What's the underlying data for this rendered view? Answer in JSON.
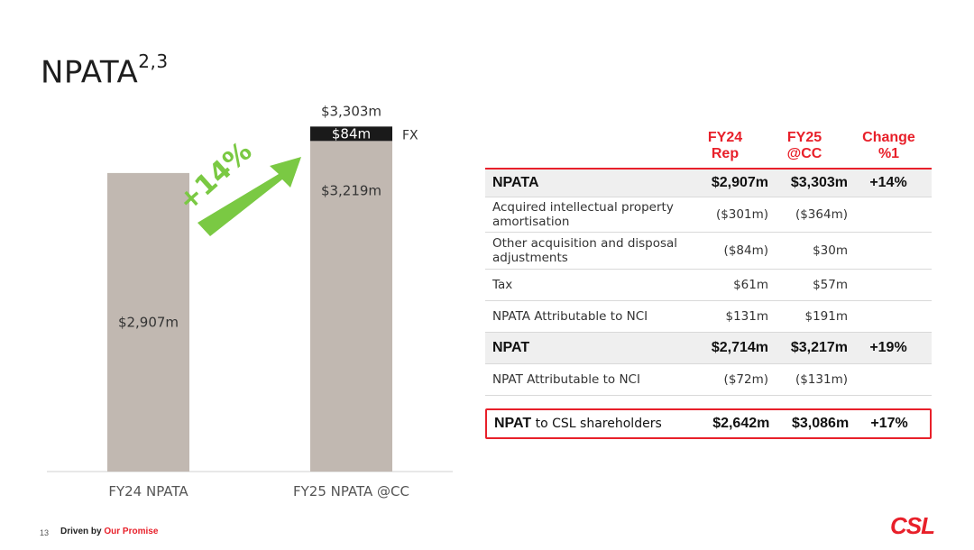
{
  "page": {
    "title": "NPATA",
    "title_superscript": "2,3",
    "page_number": "13",
    "footer_prefix": "Driven by",
    "footer_accent": "Our Promise",
    "logo_text": "CSL"
  },
  "colors": {
    "bar": "#c1b8b1",
    "fx_segment": "#1a1a1a",
    "arrow": "#7ac943",
    "accent_red": "#e8202a"
  },
  "chart_data": {
    "type": "bar",
    "categories": [
      "FY24 NPATA",
      "FY25 NPATA @CC"
    ],
    "values": [
      2907,
      3303
    ],
    "segments": [
      {
        "category": "FY24 NPATA",
        "label": "$2,907m",
        "value": 2907
      },
      {
        "category": "FY25 NPATA @CC",
        "label": "$3,219m",
        "value": 3219
      },
      {
        "category": "FY25 NPATA @CC",
        "label": "$84m",
        "value": 84,
        "annotation": "FX"
      }
    ],
    "total_label": "$3,303m",
    "growth_label": "+14%",
    "ylim": [
      0,
      3400
    ]
  },
  "table": {
    "headers": {
      "fy24": [
        "FY24",
        "Rep"
      ],
      "fy25": [
        "FY25",
        "@CC"
      ],
      "change": [
        "Change",
        "%1"
      ]
    },
    "rows": [
      {
        "label": "NPATA",
        "fy24": "$2,907m",
        "fy25": "$3,303m",
        "change": "+14%",
        "kind": "total"
      },
      {
        "label": "Acquired intellectual property amortisation",
        "fy24": "($301m)",
        "fy25": "($364m)",
        "change": "",
        "kind": "normal"
      },
      {
        "label": "Other acquisition and disposal adjustments",
        "fy24": "($84m)",
        "fy25": "$30m",
        "change": "",
        "kind": "normal"
      },
      {
        "label": "Tax",
        "fy24": "$61m",
        "fy25": "$57m",
        "change": "",
        "kind": "normal"
      },
      {
        "label": "NPATA Attributable to NCI",
        "fy24": "$131m",
        "fy25": "$191m",
        "change": "",
        "kind": "normal"
      },
      {
        "label": "NPAT",
        "fy24": "$2,714m",
        "fy25": "$3,217m",
        "change": "+19%",
        "kind": "total"
      },
      {
        "label": "NPAT Attributable to NCI",
        "fy24": "($72m)",
        "fy25": "($131m)",
        "change": "",
        "kind": "normal"
      }
    ],
    "final_row": {
      "label_bold": "NPAT",
      "label_rest": " to CSL shareholders",
      "fy24": "$2,642m",
      "fy25": "$3,086m",
      "change": "+17%"
    }
  }
}
